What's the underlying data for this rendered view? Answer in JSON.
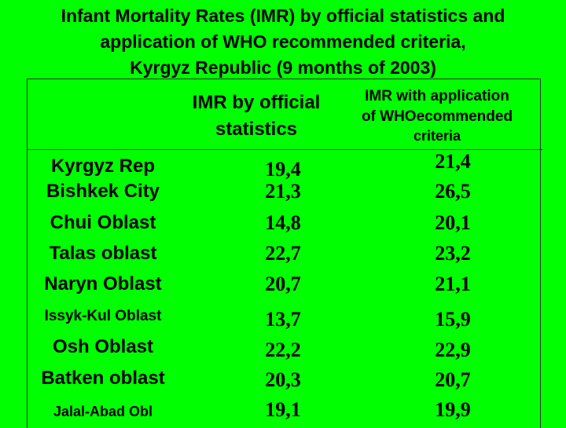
{
  "title": {
    "line1": "Infant Mortality Rates (IMR) by official statistics and",
    "line2": "application of WHO recommended criteria,",
    "line3": "Kyrgyz Republic (9 months of 2003)"
  },
  "headers": {
    "col1_line1": "IMR by official",
    "col1_line2": "statistics",
    "col2_line1": "IMR with application",
    "col2_line2": "of WHOecommended",
    "col2_line3": "criteria"
  },
  "rows": [
    {
      "label": "Kyrgyz Rep",
      "official": "19,4",
      "who": "21,4"
    },
    {
      "label": "Bishkek City",
      "official": "21,3",
      "who": "26,5"
    },
    {
      "label": "Chui Oblast",
      "official": "14,8",
      "who": "20,1"
    },
    {
      "label": "Talas oblast",
      "official": "22,7",
      "who": "23,2"
    },
    {
      "label": "Naryn Oblast",
      "official": "20,7",
      "who": "21,1"
    },
    {
      "label": "Issyk-Kul Oblast",
      "official": "13,7",
      "who": "15,9"
    },
    {
      "label": "Osh Oblast",
      "official": "22,2",
      "who": "22,9"
    },
    {
      "label": "Batken oblast",
      "official": "20,3",
      "who": "20,7"
    },
    {
      "label": "Jalal-Abad Obl",
      "official": "19,1",
      "who": "19,9"
    }
  ]
}
